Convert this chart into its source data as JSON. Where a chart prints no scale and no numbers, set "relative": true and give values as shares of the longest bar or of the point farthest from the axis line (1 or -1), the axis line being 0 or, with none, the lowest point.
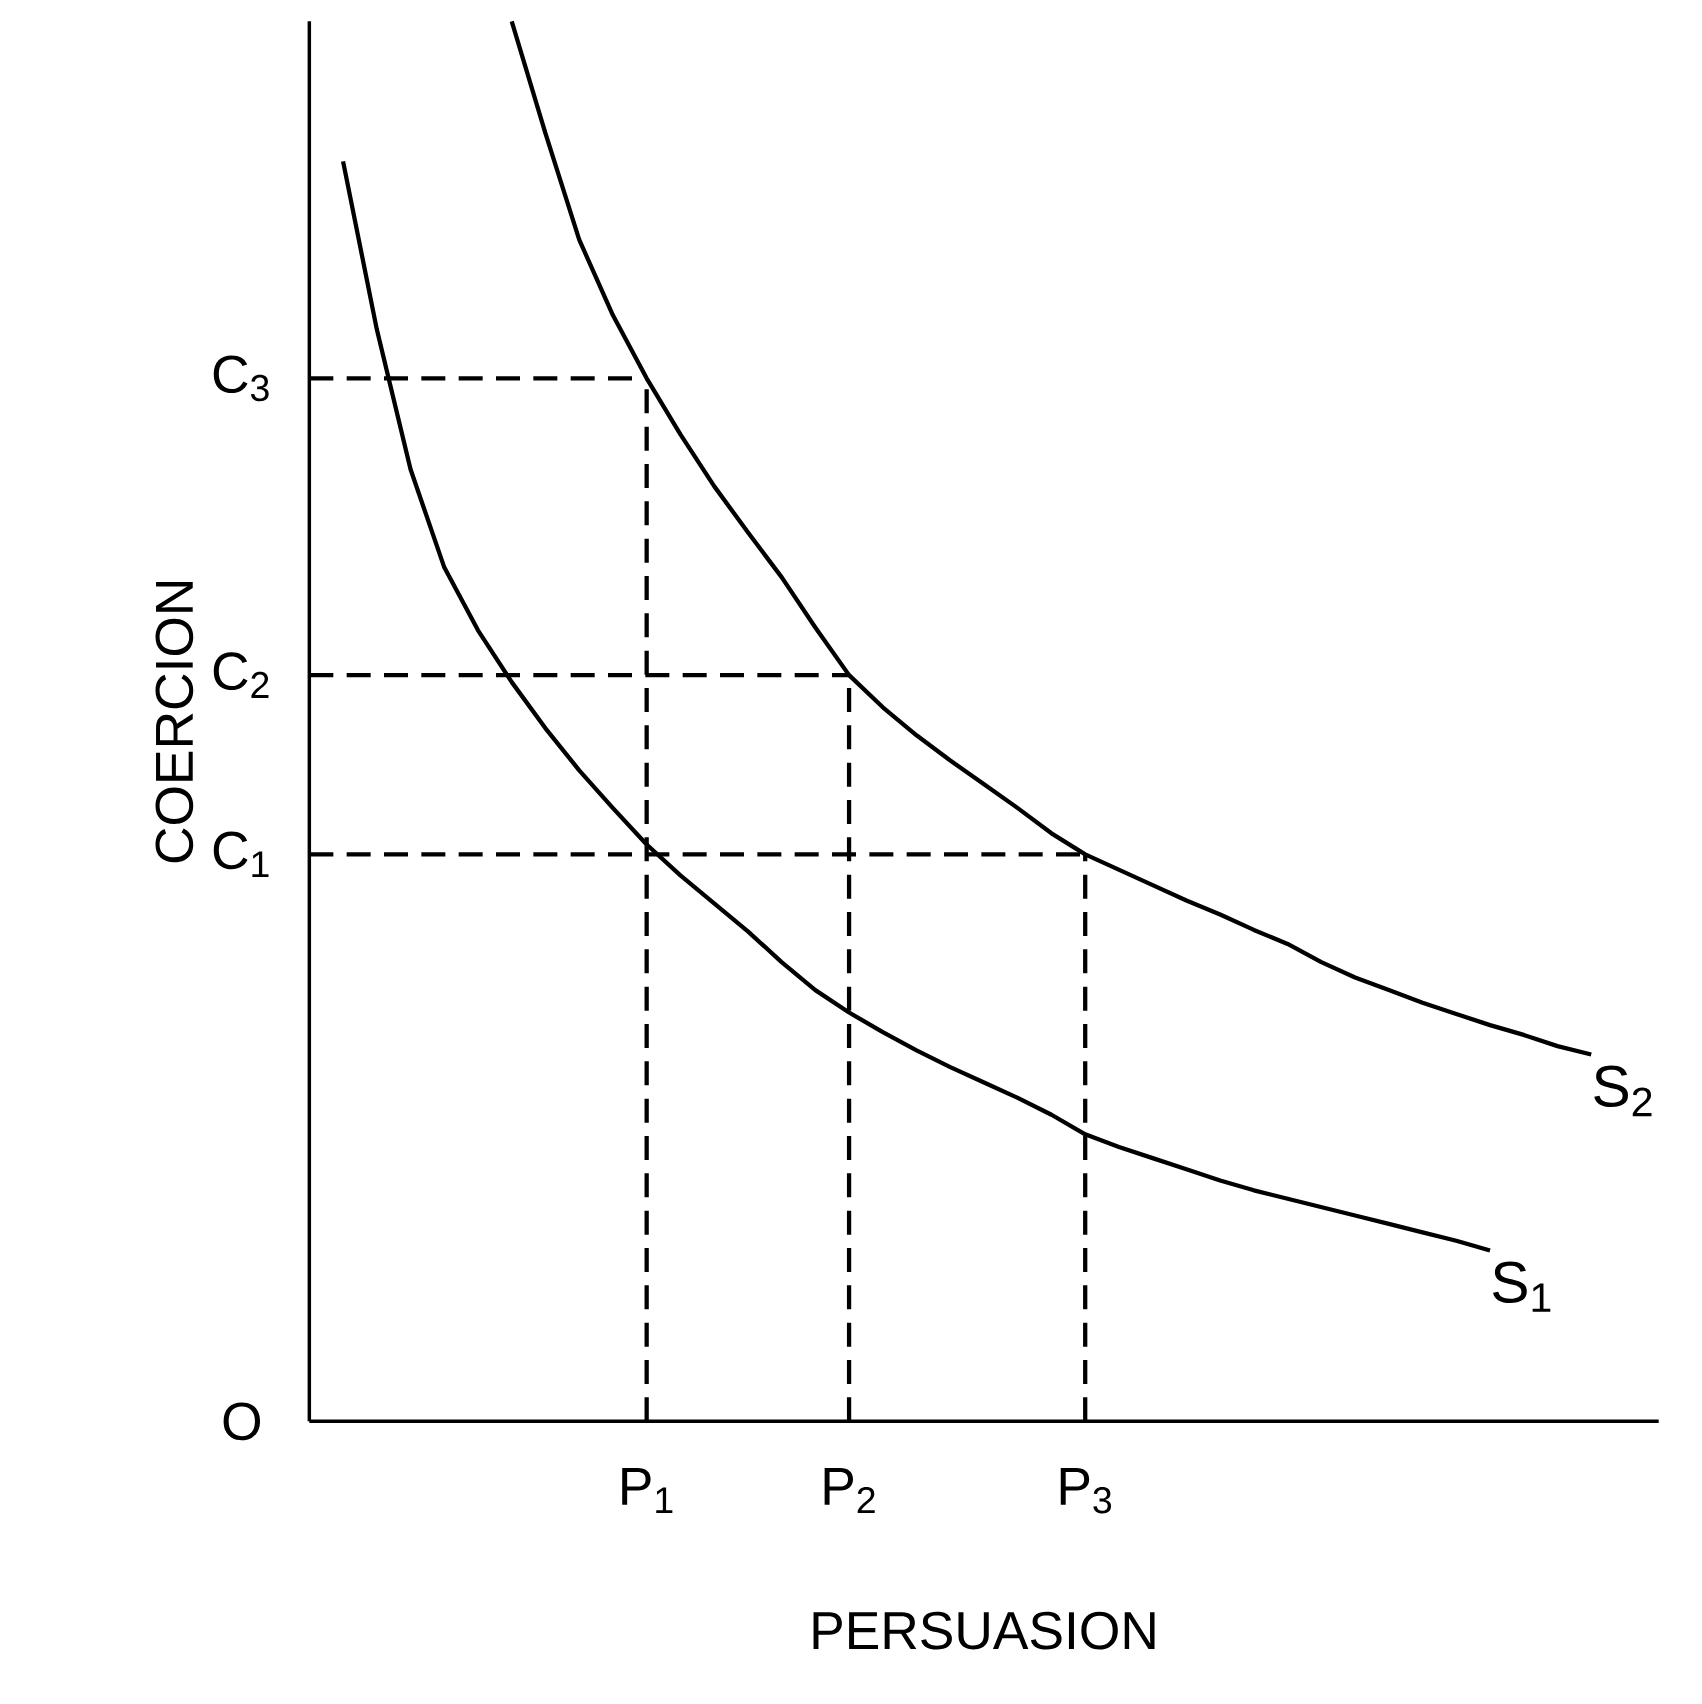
{
  "chart_data": {
    "type": "line",
    "relative": true,
    "xlabel": "PERSUASION",
    "ylabel": "COERCION",
    "categories": [
      null,
      null,
      null,
      null,
      null,
      null,
      null,
      null,
      null,
      null,
      "P$_{1}$",
      null,
      null,
      null,
      null,
      null,
      "P$_{2}$",
      null,
      null,
      null,
      null,
      null,
      null,
      "P$_{3}$",
      null,
      null,
      null,
      null,
      null,
      null,
      null,
      null,
      null,
      null,
      null,
      null,
      null,
      null,
      null,
      null,
      null
    ],
    "annotations": [
      "O"
    ],
    "marker": "none",
    "series": [
      {
        "name": "S$_{1}$",
        "color": "#000000",
        "values": [
          null,
          0.9,
          0.78,
          0.68,
          0.61,
          0.565,
          0.528,
          0.495,
          0.465,
          0.438,
          0.412,
          0.39,
          0.37,
          0.35,
          0.328,
          0.308,
          0.292,
          0.278,
          0.265,
          0.253,
          0.242,
          0.231,
          0.219,
          0.205,
          0.196,
          0.188,
          0.18,
          0.172,
          0.165,
          0.159,
          0.153,
          0.147,
          0.141,
          0.135,
          0.129,
          0.122,
          null,
          null,
          null,
          null,
          null
        ]
      },
      {
        "name": "S$_{2}$",
        "color": "#000000",
        "values": [
          null,
          null,
          null,
          null,
          null,
          null,
          1.0,
          0.92,
          0.844,
          0.79,
          0.745,
          0.705,
          0.668,
          0.635,
          0.603,
          0.567,
          0.533,
          0.51,
          0.49,
          0.472,
          0.455,
          0.438,
          0.42,
          0.405,
          0.394,
          0.383,
          0.372,
          0.362,
          0.351,
          0.341,
          0.328,
          0.317,
          0.308,
          0.299,
          0.291,
          0.283,
          0.276,
          0.268,
          0.262,
          null,
          null
        ]
      },
      {
        "name": "C$_{3}$",
        "color": "#000000",
        "line_style": "dashed",
        "values": [
          0.745,
          0.745,
          0.745,
          0.745,
          0.745,
          0.745,
          0.745,
          0.745,
          0.745,
          0.745,
          0.745,
          null,
          null,
          null,
          null,
          null,
          null,
          null,
          null,
          null,
          null,
          null,
          null,
          null,
          null,
          null,
          null,
          null,
          null,
          null,
          null,
          null,
          null,
          null,
          null,
          null,
          null,
          null,
          null,
          null,
          null
        ]
      },
      {
        "name": "C$_{2}$",
        "color": "#000000",
        "line_style": "dashed",
        "values": [
          0.533,
          0.533,
          0.533,
          0.533,
          0.533,
          0.533,
          0.533,
          0.533,
          0.533,
          0.533,
          0.533,
          0.533,
          0.533,
          0.533,
          0.533,
          0.533,
          0.533,
          null,
          null,
          null,
          null,
          null,
          null,
          null,
          null,
          null,
          null,
          null,
          null,
          null,
          null,
          null,
          null,
          null,
          null,
          null,
          null,
          null,
          null,
          null,
          null
        ]
      },
      {
        "name": "C$_{1}$",
        "color": "#000000",
        "line_style": "dashed",
        "values": [
          0.405,
          0.405,
          0.405,
          0.405,
          0.405,
          0.405,
          0.405,
          0.405,
          0.405,
          0.405,
          0.405,
          0.405,
          0.405,
          0.405,
          0.405,
          0.405,
          0.405,
          0.405,
          0.405,
          0.405,
          0.405,
          0.405,
          0.405,
          0.405,
          null,
          null,
          null,
          null,
          null,
          null,
          null,
          null,
          null,
          null,
          null,
          null,
          null,
          null,
          null,
          null,
          null
        ]
      }
    ],
    "ref_lines": [
      {
        "axis": "x",
        "value": "P$_{1}$",
        "line_style": "dashed",
        "color": "#000000"
      },
      {
        "axis": "x",
        "value": "P$_{2}$",
        "line_style": "dashed",
        "color": "#000000"
      },
      {
        "axis": "x",
        "value": "P$_{3}$",
        "line_style": "dashed",
        "color": "#000000"
      }
    ]
  }
}
